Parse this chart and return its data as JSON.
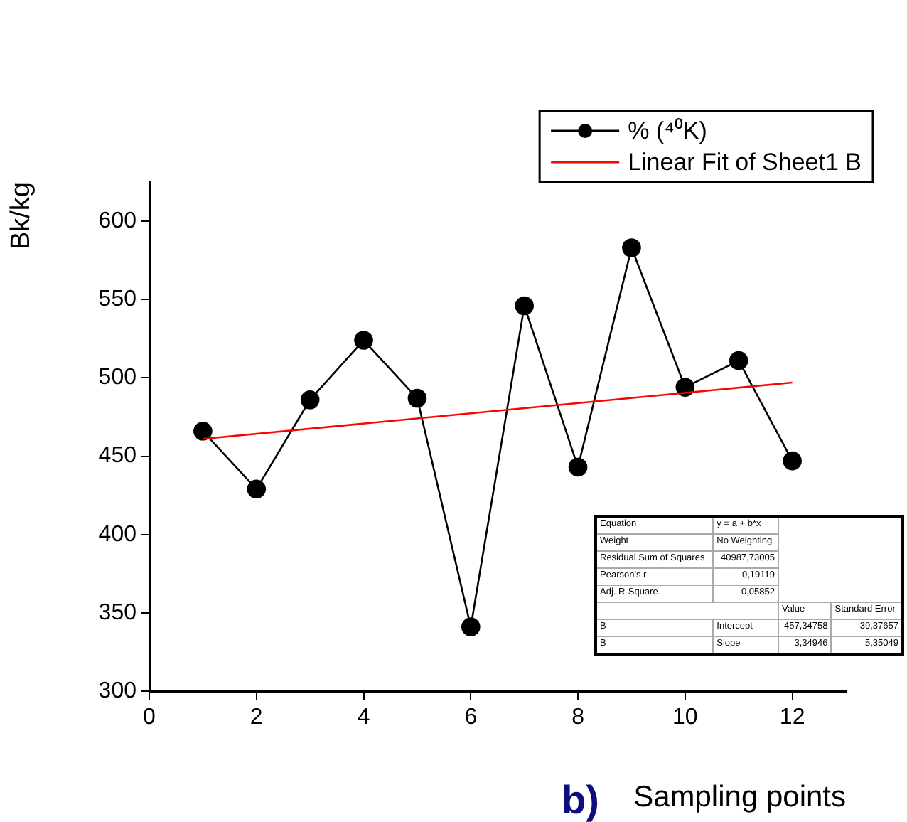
{
  "chart_data": {
    "type": "line",
    "xlabel": "Sampling points",
    "ylabel": "Bk/kg",
    "xlim": [
      0,
      13
    ],
    "xticks": [
      0,
      2,
      4,
      6,
      8,
      10,
      12
    ],
    "ylim": [
      300,
      625
    ],
    "yticks": [
      300,
      350,
      400,
      450,
      500,
      550,
      600
    ],
    "grid": false,
    "legend": "top right",
    "marker": "circle",
    "line_style": "solid",
    "series": [
      {
        "name": "% (⁴⁰K)",
        "color": "#000000",
        "x": [
          1,
          2,
          3,
          4,
          5,
          6,
          7,
          8,
          9,
          10,
          11,
          12
        ],
        "values": [
          466,
          429,
          486,
          524,
          487,
          341,
          546,
          443,
          583,
          494,
          511,
          447
        ]
      },
      {
        "name": "Linear Fit of Sheet1 B",
        "type": "line",
        "marker": "none",
        "color": "#ff0000",
        "x": [
          1,
          12
        ],
        "values": [
          461,
          497
        ]
      }
    ],
    "annotations": [
      "Equation",
      "y = a + b*x",
      "Weight",
      "No Weighting",
      "Residual Sum of Squares",
      "40987,73005",
      "Pearson's r",
      "0,19119",
      "Adj. R-Square",
      "-0,05852",
      "Value",
      "Standard Error",
      "B",
      "Intercept",
      "457,34758",
      "39,37657",
      "B",
      "Slope",
      "3,34946",
      "5,35049",
      "b)"
    ]
  }
}
